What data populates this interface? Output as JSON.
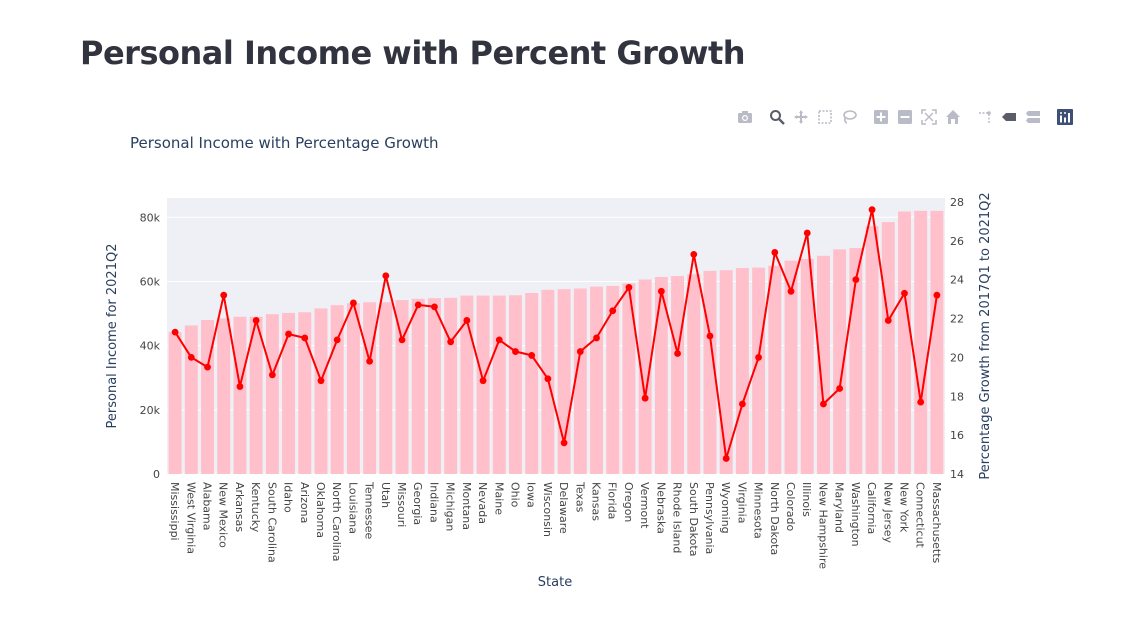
{
  "page": {
    "title": "Personal Income with Percent Growth"
  },
  "toolbar": {
    "buttons": [
      {
        "name": "camera-icon",
        "title": "Download plot as a png"
      },
      {
        "name": "zoom-icon",
        "title": "Zoom"
      },
      {
        "name": "pan-icon",
        "title": "Pan"
      },
      {
        "name": "box-select-icon",
        "title": "Box Select"
      },
      {
        "name": "lasso-select-icon",
        "title": "Lasso Select"
      },
      {
        "name": "zoom-in-icon",
        "title": "Zoom in"
      },
      {
        "name": "zoom-out-icon",
        "title": "Zoom out"
      },
      {
        "name": "autoscale-icon",
        "title": "Autoscale"
      },
      {
        "name": "reset-axes-icon",
        "title": "Reset axes"
      },
      {
        "name": "spike-lines-icon",
        "title": "Toggle Spike Lines"
      },
      {
        "name": "hover-closest-icon",
        "title": "Show closest data on hover"
      },
      {
        "name": "hover-compare-icon",
        "title": "Compare data on hover"
      },
      {
        "name": "plotly-logo-icon",
        "title": "Produced with Plotly"
      }
    ]
  },
  "colors": {
    "bar": "#ffc0cb",
    "line": "#ff0000",
    "plot_bg": "#eff0f5",
    "grid": "#ffffff"
  },
  "chart_data": {
    "type": "bar",
    "title": "Personal Income with Percentage Growth",
    "xlabel": "State",
    "ylabel": "Personal Income for 2021Q2",
    "y2label": "Percentage Growth from 2017Q1 to 2021Q2",
    "ylim": [
      0,
      86000
    ],
    "y2lim": [
      14,
      28.2
    ],
    "yticks": [
      0,
      20000,
      40000,
      60000,
      80000
    ],
    "ytick_labels": [
      "0",
      "20k",
      "40k",
      "60k",
      "80k"
    ],
    "y2ticks": [
      14,
      16,
      18,
      20,
      22,
      24,
      26,
      28
    ],
    "y2tick_labels": [
      "14",
      "16",
      "18",
      "20",
      "22",
      "24",
      "26",
      "28"
    ],
    "grid": true,
    "categories": [
      "Mississippi",
      "West Virginia",
      "Alabama",
      "New Mexico",
      "Arkansas",
      "Kentucky",
      "South Carolina",
      "Idaho",
      "Arizona",
      "Oklahoma",
      "North Carolina",
      "Louisiana",
      "Tennessee",
      "Utah",
      "Missouri",
      "Georgia",
      "Indiana",
      "Michigan",
      "Montana",
      "Nevada",
      "Maine",
      "Ohio",
      "Iowa",
      "Wisconsin",
      "Delaware",
      "Texas",
      "Kansas",
      "Florida",
      "Oregon",
      "Vermont",
      "Nebraska",
      "Rhode Island",
      "South Dakota",
      "Pennsylvania",
      "Wyoming",
      "Virginia",
      "Minnesota",
      "North Dakota",
      "Colorado",
      "Illinois",
      "New Hampshire",
      "Maryland",
      "Washington",
      "California",
      "New Jersey",
      "New York",
      "Connecticut",
      "Massachusetts"
    ],
    "series": [
      {
        "type": "bar",
        "axis": "y",
        "values": [
          44200,
          46300,
          48000,
          48500,
          49000,
          49000,
          49800,
          50200,
          50400,
          51600,
          52600,
          53200,
          53500,
          53500,
          54200,
          54600,
          54800,
          54900,
          55600,
          55600,
          55600,
          55700,
          56400,
          57400,
          57600,
          57800,
          58400,
          58600,
          59400,
          60600,
          61400,
          61700,
          62200,
          63300,
          63500,
          64200,
          64300,
          64900,
          66500,
          67000,
          68000,
          70000,
          70400,
          77200,
          78500,
          81800,
          82000,
          82000
        ]
      },
      {
        "type": "line",
        "axis": "y2",
        "values": [
          21.3,
          20.0,
          19.5,
          23.2,
          18.5,
          21.9,
          19.1,
          21.2,
          21.0,
          18.8,
          20.9,
          22.8,
          19.8,
          24.2,
          20.9,
          22.7,
          22.6,
          20.8,
          21.9,
          18.8,
          20.9,
          20.3,
          20.1,
          18.9,
          15.6,
          20.3,
          21.0,
          22.4,
          23.6,
          17.9,
          23.4,
          20.2,
          25.3,
          21.1,
          14.8,
          17.6,
          20.0,
          25.4,
          23.4,
          26.4,
          17.6,
          18.4,
          24.0,
          27.6,
          21.9,
          23.3,
          17.7,
          23.2
        ]
      }
    ]
  }
}
